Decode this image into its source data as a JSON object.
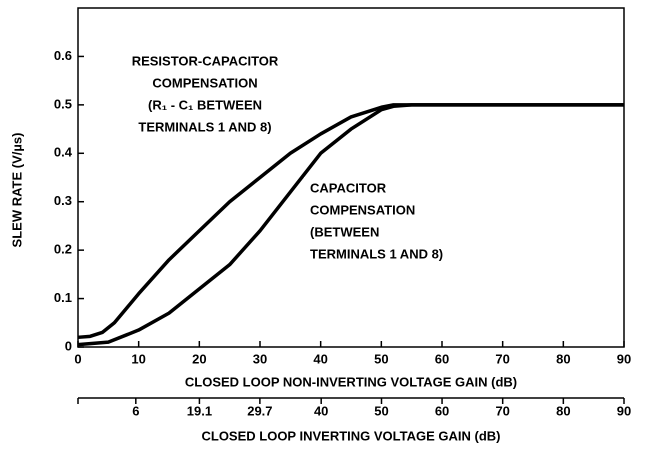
{
  "chart_data": {
    "type": "line",
    "ylabel": "SLEW RATE (V/µs)",
    "xlabel": "CLOSED LOOP NON-INVERTING VOLTAGE GAIN (dB)",
    "x2label": "CLOSED LOOP INVERTING VOLTAGE GAIN (dB)",
    "xlim": [
      0,
      90
    ],
    "xticks": [
      0,
      10,
      20,
      30,
      40,
      50,
      60,
      70,
      80,
      90
    ],
    "x2ticks": [
      6,
      19.1,
      29.7,
      40,
      50,
      60,
      70,
      80,
      90
    ],
    "ylim": [
      0,
      0.7
    ],
    "yticks": [
      0,
      0.1,
      0.2,
      0.3,
      0.4,
      0.5,
      0.6
    ],
    "series": [
      {
        "name": "RC",
        "color": "#000000",
        "x": [
          0,
          2,
          4,
          6,
          8,
          10,
          15,
          20,
          25,
          30,
          35,
          40,
          45,
          50,
          52,
          90
        ],
        "values": [
          0.02,
          0.022,
          0.03,
          0.05,
          0.08,
          0.11,
          0.18,
          0.24,
          0.3,
          0.35,
          0.4,
          0.44,
          0.475,
          0.495,
          0.5,
          0.5
        ]
      },
      {
        "name": "C",
        "color": "#000000",
        "x": [
          0,
          5,
          10,
          15,
          20,
          25,
          30,
          35,
          40,
          45,
          50,
          52,
          55,
          90
        ],
        "values": [
          0.005,
          0.01,
          0.035,
          0.07,
          0.12,
          0.17,
          0.24,
          0.32,
          0.4,
          0.45,
          0.49,
          0.497,
          0.5,
          0.5
        ]
      }
    ],
    "annotations": [
      {
        "lines": [
          "RESISTOR-CAPACITOR",
          "COMPENSATION",
          "(R₁ - C₁ BETWEEN",
          "TERMINALS 1 AND 8)"
        ]
      },
      {
        "lines": [
          "CAPACITOR",
          "COMPENSATION",
          "(BETWEEN",
          "TERMINALS 1 AND 8)"
        ]
      }
    ]
  }
}
